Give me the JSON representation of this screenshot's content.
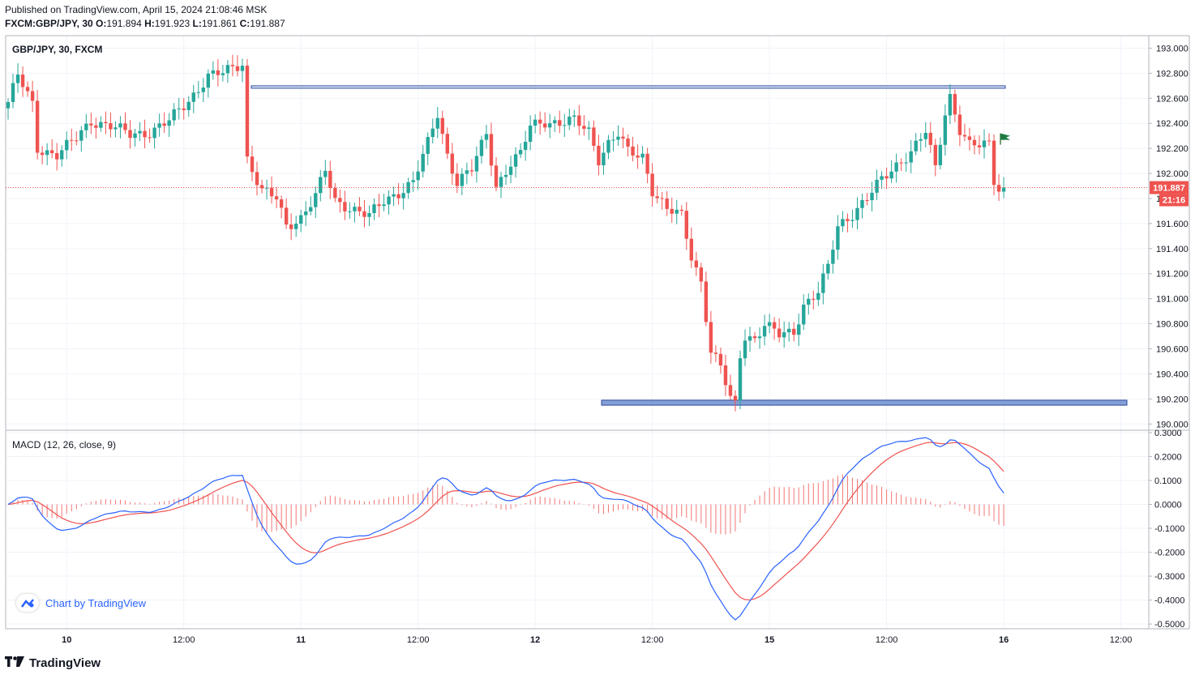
{
  "header": {
    "published": "Published on TradingView.com, April 15, 2024 21:08:46 MSK",
    "symbol_line": "FXCM:GBP/JPY, 30",
    "o_label": "O:",
    "o": "191.894",
    "h_label": "H:",
    "h": "191.923",
    "l_label": "L:",
    "l": "191.861",
    "c_label": "C:",
    "c": "191.887"
  },
  "price_pane": {
    "title": "GBP/JPY, 30, FXCM",
    "last_price": "191.887",
    "countdown": "21:16",
    "last_price_value": 191.887,
    "up_color": "#26a69a",
    "down_color": "#ef5350",
    "resistance_level": 192.69,
    "support_zone": [
      190.15,
      190.19
    ],
    "zone_color": "#5b7fc7",
    "line_color": "#2a4aa0",
    "flag_icon": "flag-icon"
  },
  "macd_pane": {
    "title": "MACD (12, 26, close, 9)",
    "macd_color": "#2962ff",
    "signal_color": "#ef5350",
    "hist_color": "#ef5350"
  },
  "watermark": {
    "text": "Chart by TradingView",
    "icon": "tradingview-cloud-icon"
  },
  "footer": {
    "brand": "TradingView",
    "logo": "tv-logo-icon"
  },
  "chart_data": {
    "type": "candlestick",
    "price_ylim": [
      189.95,
      193.1
    ],
    "price_ticks": [
      "193.000",
      "192.800",
      "192.600",
      "192.400",
      "192.200",
      "192.000",
      "191.800",
      "191.600",
      "191.400",
      "191.200",
      "191.000",
      "190.800",
      "190.600",
      "190.400",
      "190.200",
      "190.000"
    ],
    "macd_ylim": [
      -0.52,
      0.31
    ],
    "macd_ticks": [
      "0.3000",
      "0.2000",
      "0.1000",
      "0.0000",
      "-0.1000",
      "-0.2000",
      "-0.3000",
      "-0.4000",
      "-0.5000"
    ],
    "x_ticks": [
      "10",
      "12:00",
      "11",
      "12:00",
      "12",
      "12:00",
      "15",
      "12:00",
      "16",
      "12:00"
    ],
    "x_tick_index": [
      12,
      36,
      60,
      84,
      108,
      132,
      156,
      180,
      204,
      228
    ],
    "bar_count": 230,
    "anchors": [
      [
        0,
        192.57
      ],
      [
        2,
        192.78
      ],
      [
        5,
        192.55
      ],
      [
        6,
        192.2
      ],
      [
        10,
        192.15
      ],
      [
        14,
        192.28
      ],
      [
        17,
        192.42
      ],
      [
        21,
        192.38
      ],
      [
        25,
        192.31
      ],
      [
        29,
        192.33
      ],
      [
        33,
        192.42
      ],
      [
        37,
        192.58
      ],
      [
        41,
        192.78
      ],
      [
        44,
        192.8
      ],
      [
        48,
        192.88
      ],
      [
        49,
        192.12
      ],
      [
        52,
        191.86
      ],
      [
        55,
        191.8
      ],
      [
        57,
        191.58
      ],
      [
        60,
        191.65
      ],
      [
        63,
        191.82
      ],
      [
        65,
        192.02
      ],
      [
        67,
        191.78
      ],
      [
        70,
        191.73
      ],
      [
        74,
        191.66
      ],
      [
        77,
        191.78
      ],
      [
        80,
        191.85
      ],
      [
        83,
        191.93
      ],
      [
        86,
        192.24
      ],
      [
        88,
        192.48
      ],
      [
        90,
        192.15
      ],
      [
        92,
        191.93
      ],
      [
        95,
        192.03
      ],
      [
        98,
        192.32
      ],
      [
        100,
        191.9
      ],
      [
        103,
        192.08
      ],
      [
        105,
        192.15
      ],
      [
        107,
        192.38
      ],
      [
        110,
        192.42
      ],
      [
        113,
        192.4
      ],
      [
        116,
        192.42
      ],
      [
        119,
        192.34
      ],
      [
        121,
        192.12
      ],
      [
        123,
        192.24
      ],
      [
        125,
        192.31
      ],
      [
        127,
        192.17
      ],
      [
        130,
        192.14
      ],
      [
        132,
        191.87
      ],
      [
        135,
        191.71
      ],
      [
        138,
        191.66
      ],
      [
        140,
        191.34
      ],
      [
        142,
        191.14
      ],
      [
        144,
        190.58
      ],
      [
        146,
        190.45
      ],
      [
        148,
        190.2
      ],
      [
        149,
        190.15
      ],
      [
        150,
        190.55
      ],
      [
        151,
        190.71
      ],
      [
        153,
        190.68
      ],
      [
        155,
        190.79
      ],
      [
        158,
        190.71
      ],
      [
        161,
        190.74
      ],
      [
        163,
        190.95
      ],
      [
        166,
        191.05
      ],
      [
        168,
        191.25
      ],
      [
        170,
        191.58
      ],
      [
        173,
        191.68
      ],
      [
        176,
        191.8
      ],
      [
        179,
        191.95
      ],
      [
        182,
        192.07
      ],
      [
        185,
        192.17
      ],
      [
        188,
        192.33
      ],
      [
        190,
        192.04
      ],
      [
        192,
        192.49
      ],
      [
        193,
        192.62
      ],
      [
        195,
        192.35
      ],
      [
        197,
        192.22
      ],
      [
        199,
        192.22
      ],
      [
        201,
        192.24
      ],
      [
        202,
        191.95
      ],
      [
        203,
        191.89
      ],
      [
        204,
        191.89
      ]
    ]
  }
}
